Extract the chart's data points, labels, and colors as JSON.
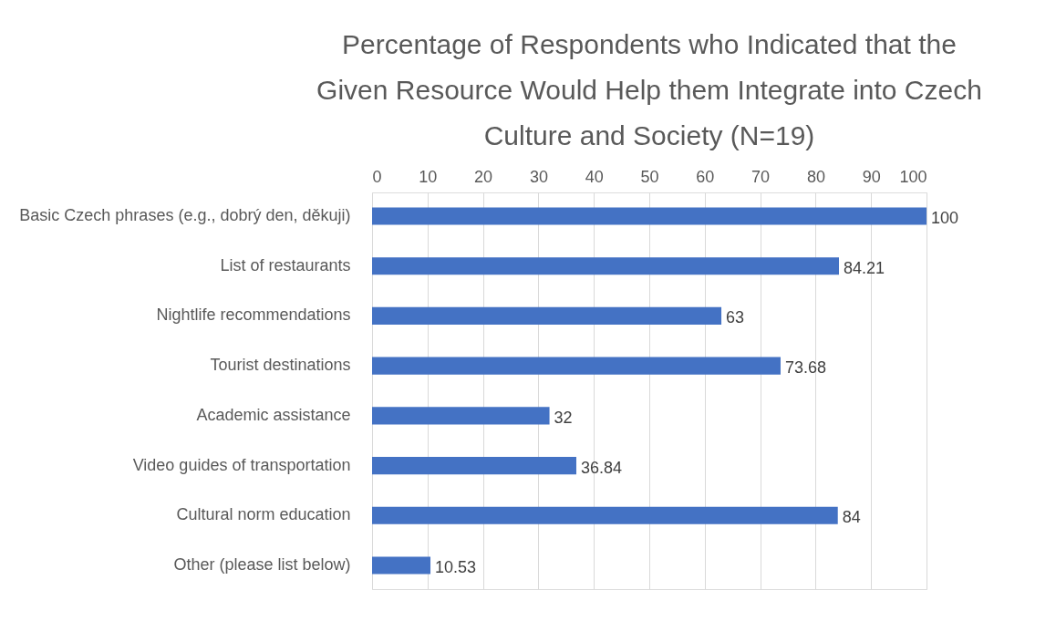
{
  "chart_data": {
    "type": "bar",
    "orientation": "horizontal",
    "title": [
      "Percentage of Respondents who Indicated that the",
      "Given Resource Would Help them Integrate into Czech",
      "Culture and Society (N=19)"
    ],
    "categories": [
      "Basic Czech phrases (e.g., dobrý den, děkuji)",
      "List of restaurants",
      "Nightlife recommendations",
      "Tourist destinations",
      "Academic assistance",
      "Video guides of transportation",
      "Cultural norm education",
      "Other (please list below)"
    ],
    "values": [
      100,
      84.21,
      63,
      73.68,
      32,
      36.84,
      84,
      10.53
    ],
    "color": "#4472c4",
    "xlim": [
      0,
      100
    ],
    "xticks": [
      0,
      10,
      20,
      30,
      40,
      50,
      60,
      70,
      80,
      90,
      100
    ],
    "grid": "x",
    "data_labels": true
  }
}
